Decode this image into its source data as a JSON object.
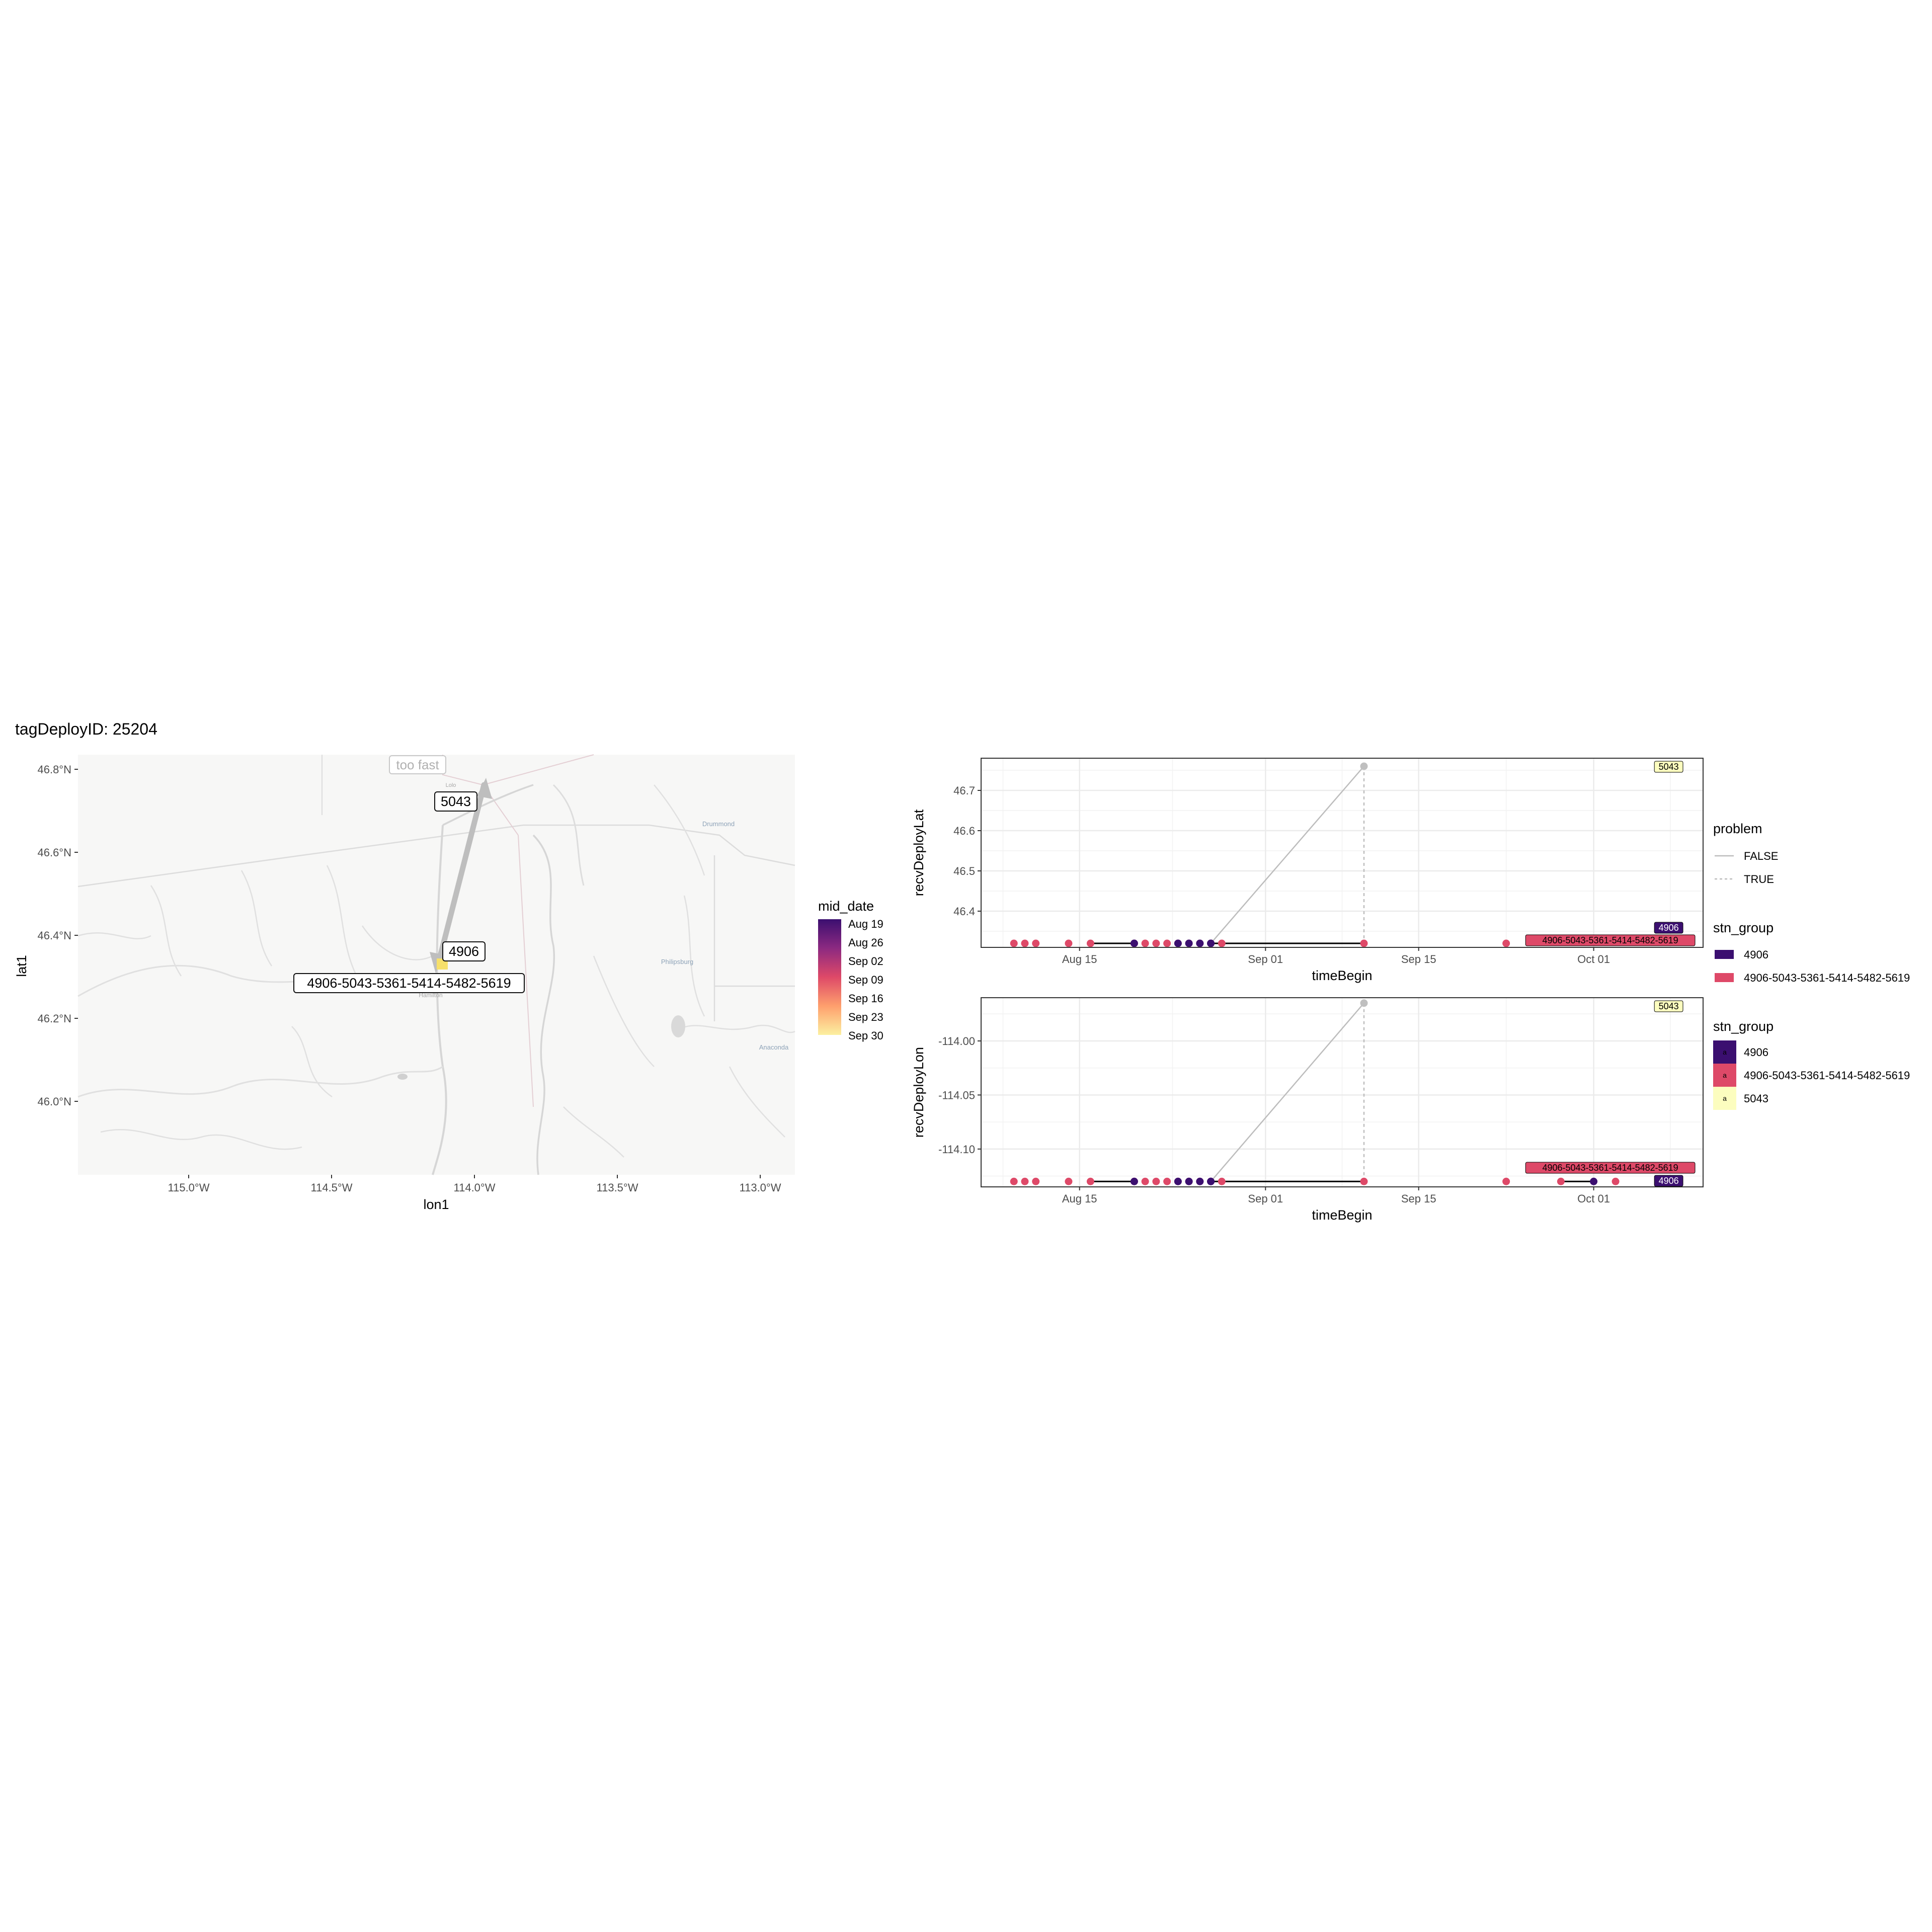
{
  "title": "tagDeployID: 25204",
  "map": {
    "xlabel": "lon1",
    "ylabel": "lat1",
    "x_ticks": [
      "115.0°W",
      "114.5°W",
      "114.0°W",
      "113.5°W",
      "113.0°W"
    ],
    "y_ticks": [
      "46.8°N",
      "46.6°N",
      "46.4°N",
      "46.2°N",
      "46.0°N"
    ],
    "annotation": "too fast",
    "station_labels": [
      "5043",
      "4906",
      "4906-5043-5361-5414-5482-5619"
    ],
    "place_labels": [
      "Drummond",
      "Philipsburg",
      "Anaconda",
      "Hamilton",
      "Lolo"
    ],
    "legend": {
      "title": "mid_date",
      "labels": [
        "Aug 19",
        "Aug 26",
        "Sep 02",
        "Sep 09",
        "Sep 16",
        "Sep 23",
        "Sep 30"
      ]
    }
  },
  "legend_problem": {
    "title": "problem",
    "items": [
      "FALSE",
      "TRUE"
    ]
  },
  "legend_stn_line": {
    "title": "stn_group",
    "items": [
      "4906",
      "4906-5043-5361-5414-5482-5619"
    ]
  },
  "legend_stn_label": {
    "title": "stn_group",
    "items": [
      "4906",
      "4906-5043-5361-5414-5482-5619",
      "5043"
    ],
    "key_glyph": "a"
  },
  "colors": {
    "g4906": "#3b0f70",
    "gmulti": "#de4968",
    "g5043": "#fcfdbf",
    "problem_line": "#bdbdbd",
    "track": "#bebebe"
  },
  "chart_data": [
    {
      "type": "scatter",
      "title": "",
      "xlabel": "timeBegin",
      "ylabel": "recvDeployLat",
      "x_ticks": [
        "Aug 15",
        "Sep 01",
        "Sep 15",
        "Oct 01"
      ],
      "y_ticks": [
        "46.4",
        "46.5",
        "46.6",
        "46.7"
      ],
      "xlim": [
        "2016-08-06",
        "2016-10-11"
      ],
      "ylim": [
        46.31,
        46.78
      ],
      "series": [
        {
          "name": "4906-5043-5361-5414-5482-5619",
          "x": [
            "2016-08-09",
            "2016-08-10",
            "2016-08-11",
            "2016-08-14",
            "2016-08-16",
            "2016-08-20",
            "2016-08-21",
            "2016-08-22",
            "2016-08-23",
            "2016-08-24",
            "2016-08-25",
            "2016-08-26",
            "2016-08-27",
            "2016-08-28",
            "2016-09-10",
            "2016-09-23"
          ],
          "y": [
            46.32,
            46.32,
            46.32,
            46.32,
            46.32,
            46.32,
            46.32,
            46.32,
            46.32,
            46.32,
            46.32,
            46.32,
            46.32,
            46.32,
            46.32,
            46.32
          ]
        },
        {
          "name": "4906",
          "x": [
            "2016-08-20",
            "2016-08-24",
            "2016-08-25",
            "2016-08-26",
            "2016-08-27",
            "2016-08-27"
          ],
          "y": [
            46.32,
            46.32,
            46.32,
            46.32,
            46.32,
            46.32
          ]
        },
        {
          "name": "5043",
          "x": [
            "2016-09-10"
          ],
          "y": [
            46.76
          ]
        }
      ],
      "lines": [
        {
          "problem": "FALSE",
          "x": [
            "2016-08-27",
            "2016-09-10"
          ],
          "y": [
            46.32,
            46.76
          ]
        },
        {
          "problem": "TRUE",
          "x": [
            "2016-09-10",
            "2016-09-10"
          ],
          "y": [
            46.76,
            46.32
          ]
        },
        {
          "stn_group": "4906",
          "x": [
            "2016-08-16",
            "2016-08-20"
          ],
          "y": [
            46.32,
            46.32
          ]
        },
        {
          "stn_group": "4906",
          "x": [
            "2016-08-27",
            "2016-09-10"
          ],
          "y": [
            46.32,
            46.32
          ]
        }
      ],
      "labels": [
        {
          "text": "5043",
          "group": "5043"
        },
        {
          "text": "4906",
          "group": "4906"
        },
        {
          "text": "4906-5043-5361-5414-5482-5619",
          "group": "multi"
        }
      ]
    },
    {
      "type": "scatter",
      "title": "",
      "xlabel": "timeBegin",
      "ylabel": "recvDeployLon",
      "x_ticks": [
        "Aug 15",
        "Sep 01",
        "Sep 15",
        "Oct 01"
      ],
      "y_ticks": [
        "-114.00",
        "-114.05",
        "-114.10"
      ],
      "xlim": [
        "2016-08-06",
        "2016-10-11"
      ],
      "ylim": [
        -114.135,
        -113.96
      ],
      "series": [
        {
          "name": "4906-5043-5361-5414-5482-5619",
          "x": [
            "2016-08-09",
            "2016-08-10",
            "2016-08-11",
            "2016-08-14",
            "2016-08-16",
            "2016-08-20",
            "2016-08-21",
            "2016-08-22",
            "2016-08-23",
            "2016-08-24",
            "2016-08-25",
            "2016-08-26",
            "2016-08-27",
            "2016-08-28",
            "2016-09-10",
            "2016-09-23",
            "2016-09-28",
            "2016-10-03"
          ],
          "y": [
            -114.13,
            -114.13,
            -114.13,
            -114.13,
            -114.13,
            -114.13,
            -114.13,
            -114.13,
            -114.13,
            -114.13,
            -114.13,
            -114.13,
            -114.13,
            -114.13,
            -114.13,
            -114.13,
            -114.13,
            -114.13
          ]
        },
        {
          "name": "4906",
          "x": [
            "2016-08-20",
            "2016-08-24",
            "2016-08-25",
            "2016-08-26",
            "2016-08-27",
            "2016-08-27",
            "2016-10-01"
          ],
          "y": [
            -114.13,
            -114.13,
            -114.13,
            -114.13,
            -114.13,
            -114.13,
            -114.13
          ]
        },
        {
          "name": "5043",
          "x": [
            "2016-09-10"
          ],
          "y": [
            -113.965
          ]
        }
      ],
      "lines": [
        {
          "problem": "FALSE",
          "x": [
            "2016-08-27",
            "2016-09-10"
          ],
          "y": [
            -114.13,
            -113.965
          ]
        },
        {
          "problem": "TRUE",
          "x": [
            "2016-09-10",
            "2016-09-10"
          ],
          "y": [
            -113.965,
            -114.13
          ]
        },
        {
          "stn_group": "4906",
          "x": [
            "2016-08-16",
            "2016-08-20"
          ],
          "y": [
            -114.13,
            -114.13
          ]
        },
        {
          "stn_group": "4906",
          "x": [
            "2016-08-27",
            "2016-09-10"
          ],
          "y": [
            -114.13,
            -114.13
          ]
        },
        {
          "stn_group": "4906",
          "x": [
            "2016-09-28",
            "2016-10-01"
          ],
          "y": [
            -114.13,
            -114.13
          ]
        }
      ],
      "labels": [
        {
          "text": "5043",
          "group": "5043"
        },
        {
          "text": "4906-5043-5361-5414-5482-5619",
          "group": "multi"
        },
        {
          "text": "4906",
          "group": "4906"
        }
      ]
    }
  ]
}
